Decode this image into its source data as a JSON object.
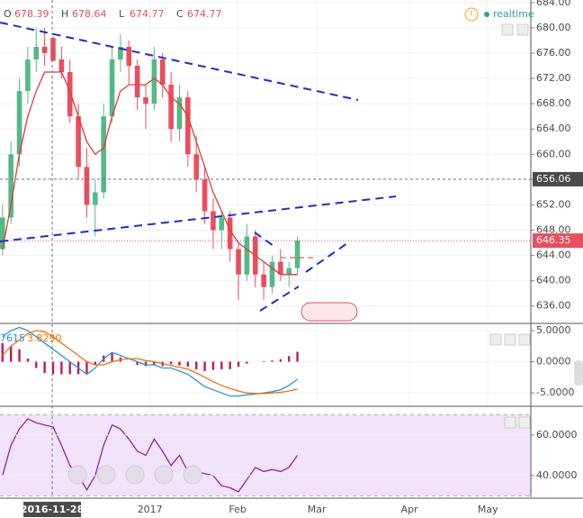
{
  "header": {
    "ohlc_letters": [
      "O",
      "H",
      "L",
      "C"
    ],
    "status": "realtime"
  },
  "chart_data": [
    {
      "type": "candlestick",
      "up_color": "#53b987",
      "down_color": "#eb4d5c",
      "xlim": [
        -0.3,
        62.7
      ],
      "xticks": [
        {
          "value": 5.9,
          "label": "2016-11-28"
        },
        {
          "value": 17.5,
          "label": "2017"
        },
        {
          "value": 27.9,
          "label": "Feb"
        },
        {
          "value": 37.3,
          "label": "Mar"
        },
        {
          "value": 48.3,
          "label": "Apr"
        },
        {
          "value": 57.6,
          "label": "May"
        }
      ],
      "ylim": [
        633.4,
        684.4
      ],
      "yticks": [
        {
          "value": 636,
          "label": "636.00"
        },
        {
          "value": 640,
          "label": "640.00"
        },
        {
          "value": 644,
          "label": "644.00"
        },
        {
          "value": 648,
          "label": "648.00"
        },
        {
          "value": 652,
          "label": "652.00"
        },
        {
          "value": 656,
          "label": "656.00"
        },
        {
          "value": 660,
          "label": "660.00"
        },
        {
          "value": 664,
          "label": "664.00"
        },
        {
          "value": 668,
          "label": "668.00"
        },
        {
          "value": 672,
          "label": "672.00"
        },
        {
          "value": 676,
          "label": "676.00"
        },
        {
          "value": 680,
          "label": "680.00"
        },
        {
          "value": 684,
          "label": "684.00"
        }
      ],
      "grid": true,
      "crosshair": {
        "x": 5.9,
        "price": 656.06
      },
      "candles": [
        [
          645,
          652,
          644,
          650
        ],
        [
          650,
          662,
          649,
          660
        ],
        [
          660,
          672,
          658,
          670
        ],
        [
          670,
          677,
          668,
          675
        ],
        [
          675,
          680,
          673,
          677
        ],
        [
          677,
          680,
          674,
          676
        ],
        [
          678.39,
          678.64,
          674.77,
          674.77
        ],
        [
          675,
          677,
          672,
          673
        ],
        [
          673,
          675,
          665,
          666
        ],
        [
          666,
          668,
          656,
          658
        ],
        [
          658,
          661,
          650,
          652
        ],
        [
          652,
          656,
          647,
          654
        ],
        [
          654,
          668,
          653,
          666
        ],
        [
          666,
          677,
          665,
          675
        ],
        [
          675,
          679,
          673,
          677
        ],
        [
          677,
          678,
          671,
          674
        ],
        [
          674,
          675,
          667,
          669
        ],
        [
          669,
          671,
          664,
          668
        ],
        [
          668,
          677,
          667,
          675
        ],
        [
          675,
          676,
          669,
          671
        ],
        [
          671,
          673,
          662,
          664
        ],
        [
          664,
          671,
          662,
          669
        ],
        [
          669,
          670,
          658,
          660
        ],
        [
          660,
          663,
          654,
          656
        ],
        [
          656,
          658,
          649,
          651
        ],
        [
          651,
          653,
          645,
          648
        ],
        [
          648,
          651,
          645,
          650
        ],
        [
          650,
          651,
          643,
          645
        ],
        [
          645,
          646,
          637,
          641
        ],
        [
          641,
          649,
          640,
          647
        ],
        [
          647,
          648,
          639,
          641
        ],
        [
          641,
          643,
          637,
          639
        ],
        [
          639,
          644,
          638,
          643
        ],
        [
          643,
          645,
          640,
          641
        ],
        [
          641,
          643,
          639,
          642
        ],
        [
          642,
          647,
          641,
          646.35
        ]
      ],
      "series": [
        {
          "color": "#e53935",
          "values": [
            645,
            652,
            660,
            666,
            670,
            673,
            673,
            673,
            670,
            666,
            662,
            660,
            661,
            666,
            670,
            671,
            671,
            671,
            672,
            671,
            669,
            668,
            666,
            662,
            658,
            654,
            651,
            648,
            646,
            645,
            644,
            643,
            642,
            641,
            641,
            641
          ]
        }
      ]
    },
    {
      "type": "macd",
      "ylim": [
        -7,
        6
      ],
      "yticks": [
        {
          "value": -5,
          "label": "-5.0000"
        },
        {
          "value": 0,
          "label": "0.0000"
        },
        {
          "value": 5,
          "label": "5.0000"
        }
      ],
      "grid": true,
      "legend_texts": [
        "7615",
        "3.8290"
      ],
      "histogram": {
        "color": "#c2185b",
        "values": [
          3,
          2.5,
          2,
          0.5,
          -1,
          -1.8,
          -2,
          -2,
          -2,
          -2,
          -2,
          -0.5,
          1,
          1.5,
          0.7,
          0,
          -0.5,
          -0.7,
          -0.5,
          -0.7,
          -0.4,
          -0.6,
          -0.8,
          -1.2,
          -1.5,
          -1.3,
          -1.2,
          -1.2,
          -0.8,
          -0.3,
          0,
          0.1,
          0.2,
          0.4,
          0.9,
          1.6
        ]
      },
      "series": [
        {
          "color": "#2196f3",
          "values": [
            4,
            5,
            5.5,
            5,
            4,
            3,
            2,
            1,
            0,
            -1,
            -2,
            -1,
            0.5,
            1.5,
            1,
            0.5,
            0,
            -0.5,
            -0.5,
            -1,
            -1,
            -1.5,
            -2,
            -3,
            -4,
            -4.5,
            -5,
            -5.5,
            -5.5,
            -5.3,
            -5.2,
            -5,
            -4.8,
            -4.5,
            -3.8,
            -2.8
          ]
        },
        {
          "color": "#ff6d00",
          "values": [
            1,
            2.5,
            3.5,
            4.5,
            5,
            4.8,
            4,
            3,
            2,
            1,
            0,
            -0.5,
            -0.5,
            0,
            0.3,
            0.5,
            0.5,
            0.2,
            0,
            -0.3,
            -0.6,
            -0.9,
            -1.2,
            -1.8,
            -2.5,
            -3.2,
            -3.8,
            -4.3,
            -4.7,
            -5,
            -5.1,
            -5.1,
            -5,
            -4.9,
            -4.7,
            -4.4
          ]
        }
      ]
    },
    {
      "type": "line",
      "ylim": [
        29.3,
        73.3
      ],
      "yticks": [
        {
          "value": 40,
          "label": "40.0000"
        },
        {
          "value": 60,
          "label": "60.0000"
        }
      ],
      "grid": true,
      "band": [
        30,
        70
      ],
      "band_color": "#f1e3fa",
      "series": [
        {
          "color": "#8e24aa",
          "values": [
            40,
            55,
            63,
            68,
            66,
            65,
            64,
            55,
            45,
            40,
            33,
            40,
            55,
            65,
            63,
            58,
            52,
            50,
            58,
            52,
            45,
            50,
            42,
            42,
            41,
            40,
            35,
            34,
            32,
            38,
            44,
            42,
            43,
            42,
            44,
            50
          ]
        }
      ]
    }
  ]
}
